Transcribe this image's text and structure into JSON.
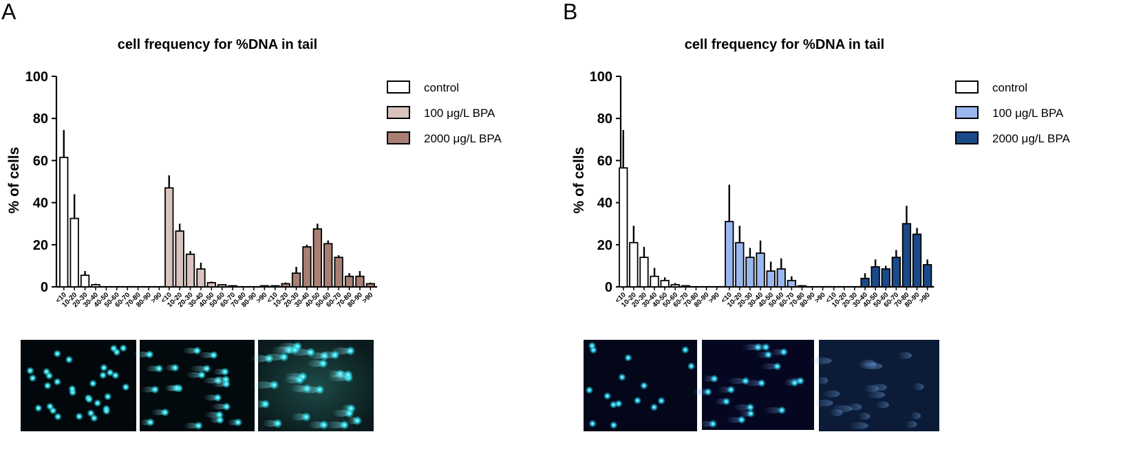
{
  "panels": [
    {
      "letter": "A",
      "micrograph_style": "teal"
    },
    {
      "letter": "B",
      "micrograph_style": "blue"
    }
  ],
  "chart_data": [
    {
      "type": "bar",
      "title": "cell frequency for %DNA in tail",
      "xlabel": "",
      "ylabel": "% of cells",
      "ylim": [
        0,
        100
      ],
      "yticks": [
        0,
        20,
        40,
        60,
        80,
        100
      ],
      "categories": [
        "<10",
        "10-20",
        "20-30",
        "30-40",
        "40-50",
        "50-60",
        "60-70",
        "70-80",
        "80-90",
        ">90"
      ],
      "legend_position": "top-right",
      "series": [
        {
          "name": "control",
          "color": "#ffffff",
          "values": [
            61.5,
            32.5,
            5.5,
            1,
            0,
            0,
            0,
            0,
            0,
            0
          ],
          "errors": [
            13,
            11.5,
            2,
            0.5,
            0,
            0,
            0,
            0,
            0,
            0
          ]
        },
        {
          "name": "100 μg/L BPA",
          "color": "#d8c3bd",
          "values": [
            47,
            26.5,
            15.5,
            8.5,
            2,
            1,
            0.5,
            0,
            0,
            0.5
          ],
          "errors": [
            6,
            3.5,
            1.5,
            3,
            0.5,
            0.3,
            0.3,
            0,
            0,
            0.2
          ]
        },
        {
          "name": "2000 μg/L BPA",
          "color": "#a97f74",
          "values": [
            0.5,
            1.5,
            6.5,
            19,
            27.5,
            20.5,
            14,
            5,
            5,
            1.5
          ],
          "errors": [
            0.3,
            0.6,
            3,
            1,
            2.5,
            1.5,
            1,
            1.5,
            2.5,
            0.5
          ]
        }
      ]
    },
    {
      "type": "bar",
      "title": "cell frequency for %DNA in tail",
      "xlabel": "",
      "ylabel": "% of cells",
      "ylim": [
        0,
        100
      ],
      "yticks": [
        0,
        20,
        40,
        60,
        80,
        100
      ],
      "categories": [
        "<10",
        "10-20",
        "20-30",
        "30-40",
        "40-50",
        "50-60",
        "60-70",
        "70-80",
        "80-90",
        ">90"
      ],
      "legend_position": "top-right",
      "series": [
        {
          "name": "control",
          "color": "#ffffff",
          "values": [
            56.5,
            21,
            14,
            5,
            3,
            1,
            0.5,
            0,
            0,
            0
          ],
          "errors": [
            18,
            8,
            5,
            4,
            1.5,
            0.8,
            0.3,
            0,
            0,
            0
          ]
        },
        {
          "name": "100 μg/L BPA",
          "color": "#9ab8ef",
          "values": [
            31,
            21,
            14,
            16,
            7.5,
            8.5,
            3,
            0.5,
            0,
            0
          ],
          "errors": [
            17.5,
            8,
            4.5,
            6,
            4.5,
            5,
            2,
            0.3,
            0,
            0
          ]
        },
        {
          "name": "2000 μg/L BPA",
          "color": "#1a4a8a",
          "values": [
            0,
            0,
            0,
            4,
            9.5,
            8.5,
            14,
            30,
            25,
            10.5
          ],
          "errors": [
            0,
            0,
            0,
            2.5,
            3.5,
            1.5,
            3.5,
            8.5,
            3,
            2.5
          ]
        }
      ]
    }
  ]
}
